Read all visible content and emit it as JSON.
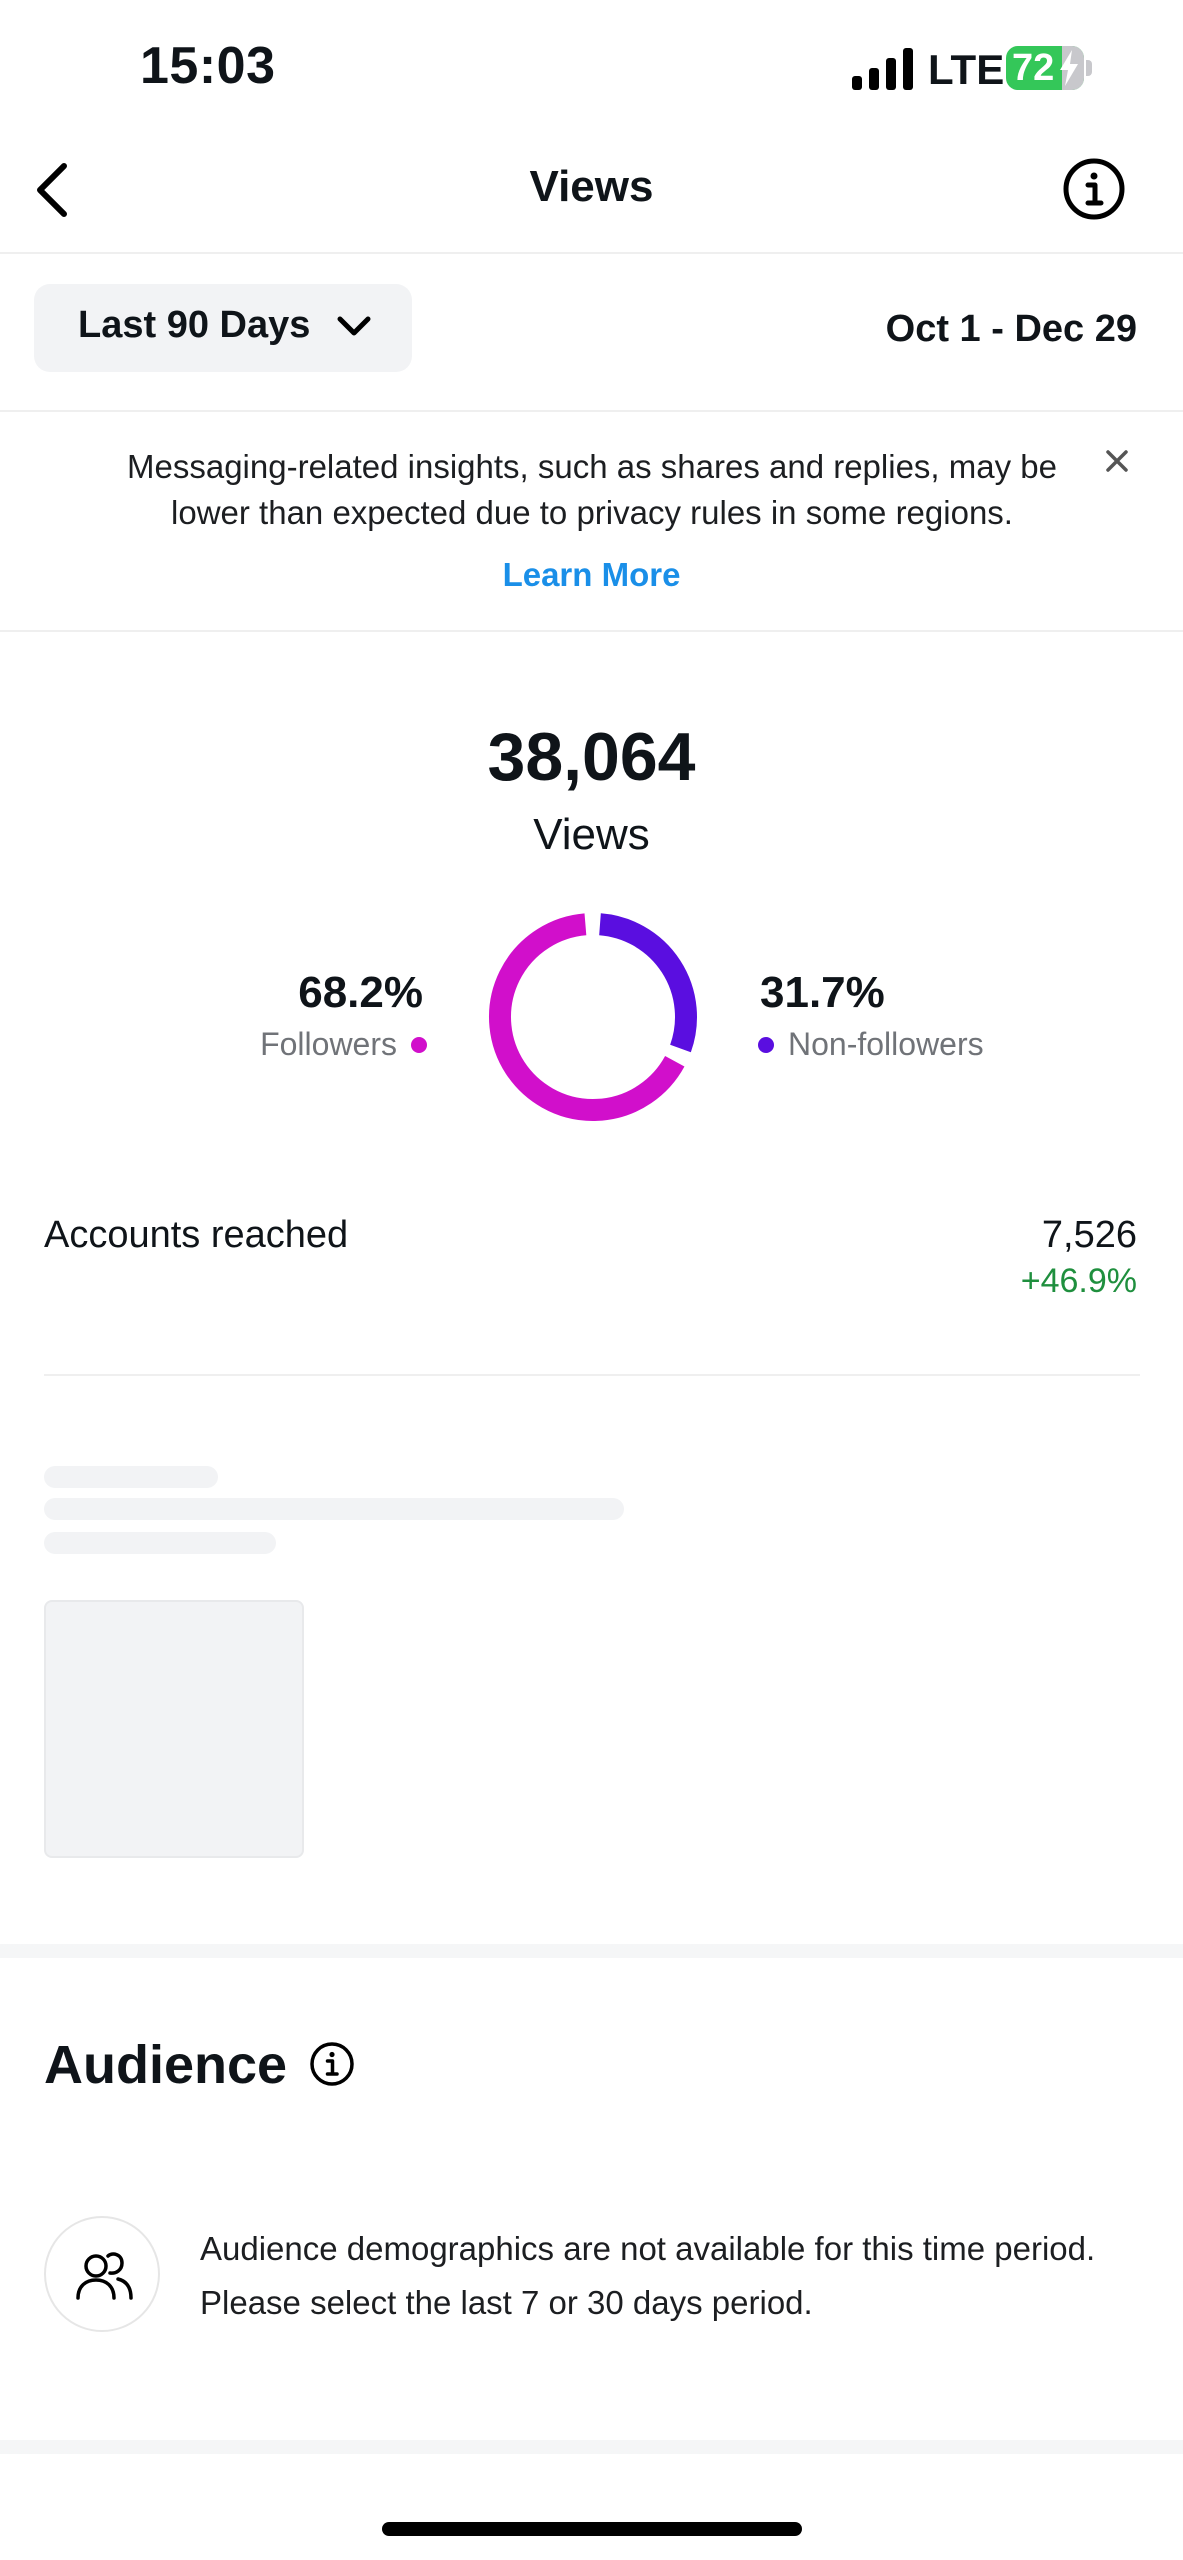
{
  "status_bar": {
    "time": "15:03",
    "network": "LTE",
    "battery": "72"
  },
  "nav": {
    "title": "Views"
  },
  "range": {
    "selected": "Last 90 Days",
    "dates": "Oct 1 - Dec 29"
  },
  "banner": {
    "text": "Messaging-related insights, such as shares and replies, may be lower than expected due to privacy rules in some regions.",
    "link": "Learn More"
  },
  "views": {
    "total": "38,064",
    "label": "Views",
    "followers": {
      "percent": "68.2%",
      "label": "Followers",
      "color": "#d10fcb",
      "fraction": 0.682
    },
    "non_followers": {
      "percent": "31.7%",
      "label": "Non-followers",
      "color": "#5a0ee0",
      "fraction": 0.317
    }
  },
  "accounts_reached": {
    "label": "Accounts reached",
    "value": "7,526",
    "change": "+46.9%",
    "change_color": "#1f8f3e"
  },
  "audience": {
    "title": "Audience",
    "message": "Audience demographics are not available for this time period. Please select the last 7 or 30 days period."
  },
  "colors": {
    "link": "#1a8fe8",
    "skeleton": "#f2f3f5"
  }
}
